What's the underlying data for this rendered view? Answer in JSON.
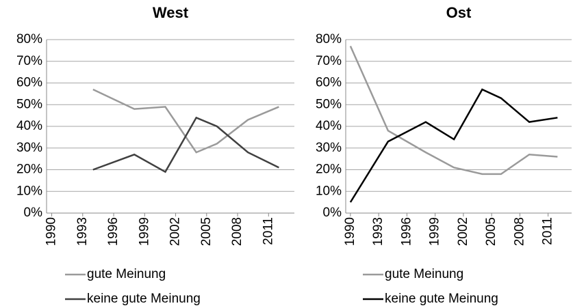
{
  "chart_data": [
    {
      "type": "line",
      "title": "West",
      "xlim": [
        1989.5,
        2013.5
      ],
      "xticks": [
        1990,
        1993,
        1996,
        1999,
        2002,
        2005,
        2008,
        2011
      ],
      "ylim": [
        0,
        80
      ],
      "yticks": [
        {
          "value": 0,
          "label": "0%"
        },
        {
          "value": 10,
          "label": "10%"
        },
        {
          "value": 20,
          "label": "20%"
        },
        {
          "value": 30,
          "label": "30%"
        },
        {
          "value": 40,
          "label": "40%"
        },
        {
          "value": 50,
          "label": "50%"
        },
        {
          "value": 60,
          "label": "60%"
        },
        {
          "value": 70,
          "label": "70%"
        },
        {
          "value": 80,
          "label": "80%"
        }
      ],
      "grid": true,
      "x": [
        1994,
        1998,
        2001,
        2004,
        2006,
        2009,
        2012
      ],
      "series": [
        {
          "name": "gute Meinung",
          "color": "#9a9a9a",
          "values": [
            57,
            48,
            49,
            28,
            32,
            43,
            49
          ]
        },
        {
          "name": "keine gute Meinung",
          "color": "#404040",
          "values": [
            20,
            27,
            19,
            44,
            40,
            28,
            21
          ]
        }
      ]
    },
    {
      "type": "line",
      "title": "Ost",
      "xlim": [
        1989.5,
        2013.5
      ],
      "xticks": [
        1990,
        1993,
        1996,
        1999,
        2002,
        2005,
        2008,
        2011
      ],
      "ylim": [
        0,
        80
      ],
      "yticks": [
        {
          "value": 0,
          "label": "0%"
        },
        {
          "value": 10,
          "label": "10%"
        },
        {
          "value": 20,
          "label": "20%"
        },
        {
          "value": 30,
          "label": "30%"
        },
        {
          "value": 40,
          "label": "40%"
        },
        {
          "value": 50,
          "label": "50%"
        },
        {
          "value": 60,
          "label": "60%"
        },
        {
          "value": 70,
          "label": "70%"
        },
        {
          "value": 80,
          "label": "80%"
        }
      ],
      "grid": true,
      "x": [
        1990,
        1994,
        1998,
        2001,
        2004,
        2006,
        2009,
        2012
      ],
      "series": [
        {
          "name": "gute Meinung",
          "color": "#9a9a9a",
          "values": [
            77,
            38,
            28,
            21,
            18,
            18,
            27,
            26
          ]
        },
        {
          "name": "keine gute Meinung",
          "color": "#000000",
          "values": [
            5,
            33,
            42,
            34,
            57,
            53,
            42,
            44
          ]
        }
      ]
    }
  ]
}
